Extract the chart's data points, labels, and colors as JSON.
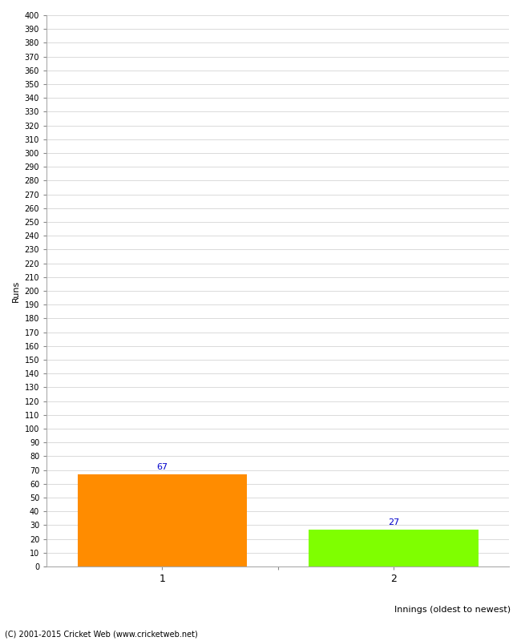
{
  "categories": [
    "1",
    "2"
  ],
  "values": [
    67,
    27
  ],
  "bar_colors": [
    "#FF8C00",
    "#7FFF00"
  ],
  "ylabel": "Runs",
  "xlabel": "Innings (oldest to newest)",
  "ylim": [
    0,
    400
  ],
  "value_label_color": "#0000CC",
  "value_label_fontsize": 8,
  "background_color": "#FFFFFF",
  "grid_color": "#CCCCCC",
  "footer": "(C) 2001-2015 Cricket Web (www.cricketweb.net)",
  "bar_positions": [
    0.75,
    2.25
  ],
  "bar_width": 1.1,
  "xlim": [
    0,
    3.0
  ],
  "xtick_positions": [
    0.75,
    1.5,
    2.25
  ],
  "xtick_labels": [
    "1",
    "",
    "2"
  ]
}
